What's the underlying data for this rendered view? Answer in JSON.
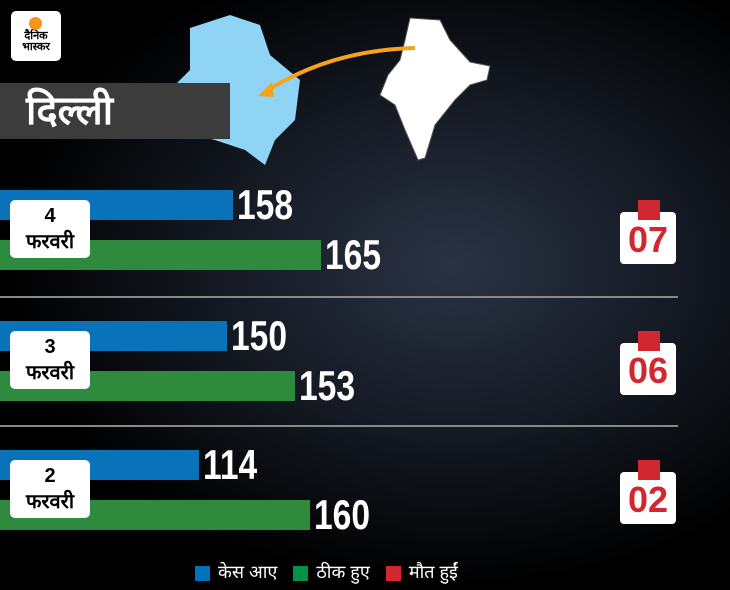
{
  "logo": {
    "line1": "दैनिक",
    "line2": "भास्कर"
  },
  "title": "दिल्ली",
  "chart_data": {
    "type": "bar",
    "categories": [
      "4 फरवरी",
      "3 फरवरी",
      "2 फरवरी"
    ],
    "category_parts": [
      [
        "4",
        "फरवरी"
      ],
      [
        "3",
        "फरवरी"
      ],
      [
        "2",
        "फरवरी"
      ]
    ],
    "series": [
      {
        "name": "केस आए",
        "color": "#0072bc",
        "values": [
          158,
          150,
          114
        ]
      },
      {
        "name": "ठीक हुए",
        "color": "#009245",
        "values": [
          165,
          153,
          160
        ]
      },
      {
        "name": "मौत हुईं",
        "color": "#d22630",
        "values": [
          "07",
          "06",
          "02"
        ]
      }
    ],
    "legend_placement": "bottom"
  }
}
